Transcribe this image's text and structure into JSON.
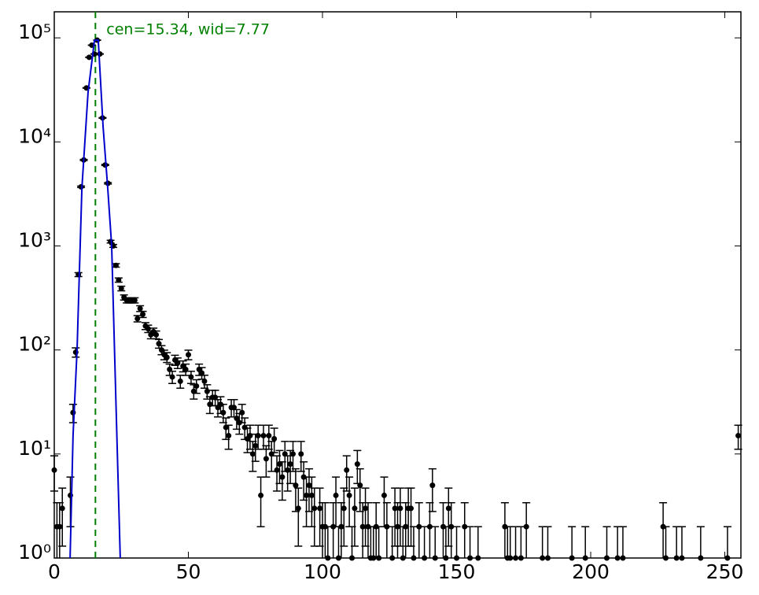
{
  "chart_data": {
    "type": "errorbar",
    "annotation": "cen=15.34, wid=7.77",
    "vline": 15.34,
    "vline_color": "#008000",
    "log_y": true,
    "xlim": [
      0,
      256
    ],
    "ylim": [
      1,
      178000
    ],
    "xticks": [
      0,
      50,
      100,
      150,
      200,
      250
    ],
    "yticks": [
      {
        "value": 1,
        "label": "10⁰"
      },
      {
        "value": 10,
        "label": "10¹"
      },
      {
        "value": 100,
        "label": "10²"
      },
      {
        "value": 1000,
        "label": "10³"
      },
      {
        "value": 10000,
        "label": "10⁴"
      },
      {
        "value": 100000,
        "label": "10⁵"
      }
    ],
    "series": [
      {
        "color": "#000000",
        "x": [
          0,
          1,
          2,
          3,
          6,
          7,
          8,
          9,
          10,
          11,
          12,
          13,
          14,
          15,
          16,
          17,
          18,
          19,
          20,
          21,
          22,
          23,
          24,
          25,
          26,
          27,
          28,
          29,
          30,
          31,
          32,
          33,
          34,
          35,
          36,
          37,
          38,
          39,
          40,
          41,
          42,
          43,
          44,
          45,
          46,
          47,
          48,
          49,
          50,
          51,
          52,
          53,
          54,
          55,
          56,
          57,
          58,
          59,
          60,
          61,
          62,
          63,
          64,
          65,
          66,
          67,
          68,
          69,
          70,
          71,
          72,
          73,
          74,
          75,
          76,
          77,
          78,
          79,
          80,
          81,
          82,
          83,
          84,
          85,
          86,
          87,
          88,
          89,
          90,
          91,
          92,
          93,
          94,
          95,
          96,
          97,
          99,
          100,
          101,
          102,
          104,
          105,
          106,
          107,
          108,
          109,
          110,
          111,
          112,
          113,
          114,
          115,
          116,
          117,
          118,
          119,
          120,
          121,
          123,
          124,
          126,
          127,
          128,
          129,
          130,
          131,
          132,
          133,
          134,
          136,
          138,
          140,
          141,
          142,
          145,
          146,
          147,
          148,
          150,
          153,
          155,
          158,
          168,
          169,
          170,
          172,
          174,
          176,
          182,
          184,
          193,
          198,
          206,
          210,
          212,
          227,
          228,
          232,
          234,
          241,
          251,
          255
        ],
        "values": [
          7,
          2,
          2,
          3,
          4,
          25,
          95,
          530,
          3700,
          6700,
          33000,
          65000,
          85000,
          70000,
          95000,
          70000,
          17000,
          6000,
          4000,
          1100,
          1000,
          650,
          470,
          390,
          320,
          300,
          300,
          300,
          300,
          200,
          250,
          220,
          170,
          160,
          140,
          150,
          140,
          115,
          100,
          90,
          85,
          65,
          55,
          80,
          75,
          50,
          70,
          65,
          90,
          55,
          40,
          45,
          65,
          60,
          50,
          40,
          30,
          35,
          35,
          28,
          30,
          25,
          18,
          15,
          28,
          28,
          22,
          20,
          25,
          18,
          14,
          15,
          10,
          12,
          15,
          4,
          15,
          9,
          15,
          10,
          14,
          7,
          8,
          6,
          10,
          7,
          8,
          10,
          5,
          3,
          10,
          6,
          4,
          5,
          4,
          3,
          3,
          2,
          2,
          1,
          2,
          4,
          1,
          2,
          3,
          7,
          4,
          1,
          3,
          8,
          5,
          2,
          3,
          2,
          1,
          1,
          2,
          1,
          4,
          2,
          1,
          3,
          2,
          3,
          1,
          2,
          3,
          3,
          1,
          2,
          1,
          2,
          5,
          1,
          2,
          1,
          3,
          2,
          1,
          2,
          1,
          1,
          2,
          1,
          1,
          1,
          1,
          2,
          1,
          1,
          1,
          1,
          1,
          1,
          1,
          2,
          1,
          1,
          1,
          1,
          1,
          15
        ],
        "errors": [
          2.6,
          1.4,
          1.4,
          1.7,
          2,
          5,
          9.7,
          23,
          61,
          82,
          182,
          255,
          292,
          265,
          308,
          265,
          130,
          77,
          63,
          33,
          32,
          25,
          22,
          20,
          18,
          17,
          17,
          17,
          17,
          14,
          16,
          15,
          13,
          13,
          12,
          12,
          12,
          11,
          10,
          9.5,
          9.2,
          8.1,
          7.4,
          8.9,
          8.7,
          7.1,
          8.4,
          8.1,
          9.5,
          7.4,
          6.3,
          6.7,
          8.1,
          7.7,
          7.1,
          6.3,
          5.5,
          5.9,
          5.9,
          5.3,
          5.5,
          5,
          4.2,
          3.9,
          5.3,
          5.3,
          4.7,
          4.5,
          5,
          4.2,
          3.7,
          3.9,
          3.2,
          3.5,
          3.9,
          2,
          3.9,
          3,
          3.9,
          3.2,
          3.7,
          2.6,
          2.8,
          2.4,
          3.2,
          2.6,
          2.8,
          3.2,
          2.2,
          1.7,
          3.2,
          2.4,
          2,
          2.2,
          2,
          1.7,
          1.7,
          1.4,
          1.4,
          1,
          1.4,
          2,
          1,
          1.4,
          1.7,
          2.6,
          2,
          1,
          1.7,
          2.8,
          2.2,
          1.4,
          1.7,
          1.4,
          1,
          1,
          1.4,
          1,
          2,
          1.4,
          1,
          1.7,
          1.4,
          1.7,
          1,
          1.4,
          1.7,
          1.7,
          1,
          1.4,
          1,
          1.4,
          2.2,
          1,
          1.4,
          1,
          1.7,
          1.4,
          1,
          1.4,
          1,
          1,
          1.4,
          1,
          1,
          1,
          1,
          1.4,
          1,
          1,
          1,
          1,
          1,
          1,
          1,
          1.4,
          1,
          1,
          1,
          1,
          1,
          3.9
        ]
      },
      {
        "color": "#0000cc",
        "line": true,
        "x": [
          5.9,
          7,
          8.5,
          10.3,
          12.6,
          15,
          16.4,
          18.2,
          19.9,
          21.4,
          23.2,
          24.6
        ],
        "values": [
          1,
          15,
          100,
          3600,
          30000,
          95000,
          95000,
          14000,
          3700,
          1000,
          20,
          1
        ]
      }
    ]
  }
}
